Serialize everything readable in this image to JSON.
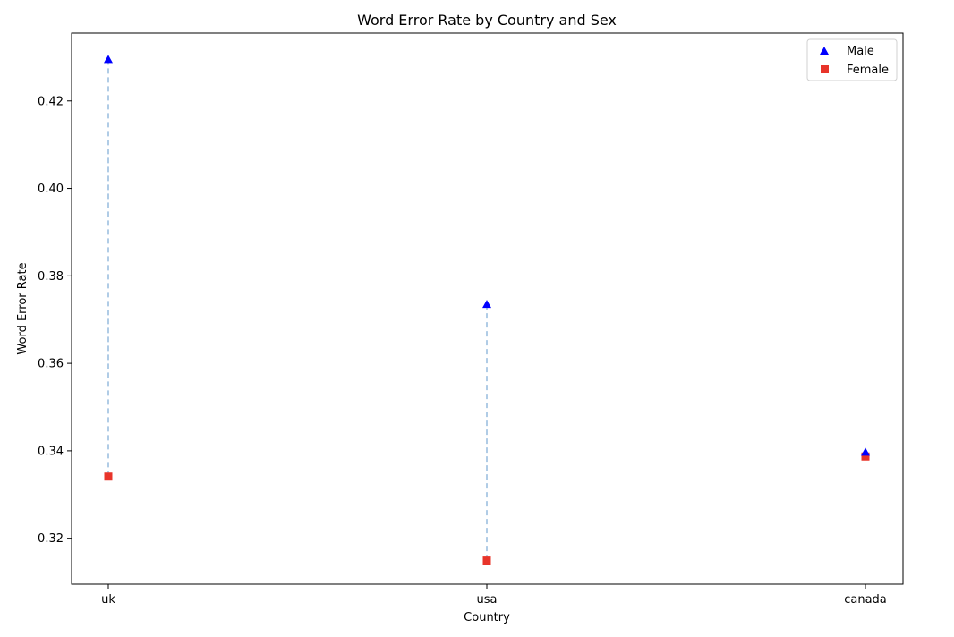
{
  "chart_data": {
    "type": "scatter",
    "title": "Word Error Rate by Country and Sex",
    "xlabel": "Country",
    "ylabel": "Word Error Rate",
    "categories": [
      "uk",
      "usa",
      "canada"
    ],
    "series": [
      {
        "name": "Male",
        "marker": "triangle",
        "color": "#0000ff",
        "values": [
          0.4295,
          0.3735,
          0.3397
        ]
      },
      {
        "name": "Female",
        "marker": "square",
        "color": "#e8342a",
        "values": [
          0.3341,
          0.3149,
          0.3387
        ]
      }
    ],
    "connector": {
      "style": "dashed",
      "color": "#9dbfe0"
    },
    "ylim": [
      0.3095,
      0.4355
    ],
    "yticks": [
      0.32,
      0.34,
      0.36,
      0.38,
      0.4,
      0.42
    ],
    "ytick_labels": [
      "0.32",
      "0.34",
      "0.36",
      "0.38",
      "0.40",
      "0.42"
    ],
    "grid": false,
    "legend_position": "top-right"
  }
}
